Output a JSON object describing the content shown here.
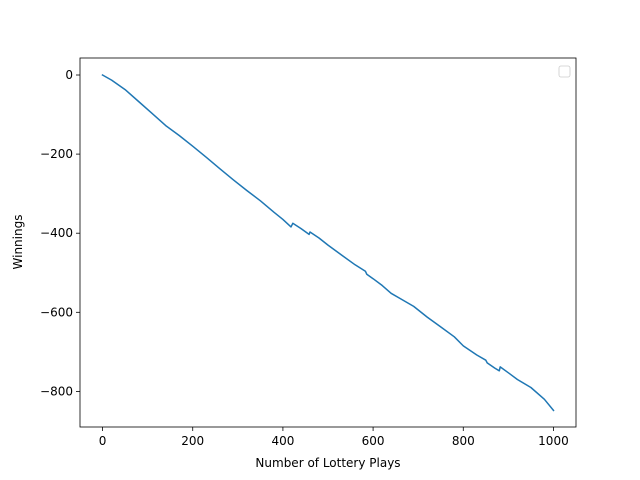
{
  "chart_data": {
    "type": "line",
    "title": "",
    "xlabel": "Number of Lottery Plays",
    "ylabel": "Winnings",
    "xlim": [
      -50,
      1050
    ],
    "ylim": [
      -890,
      43
    ],
    "xticks": [
      0,
      200,
      400,
      600,
      800,
      1000
    ],
    "xtick_labels": [
      "0",
      "200",
      "400",
      "600",
      "800",
      "1000"
    ],
    "yticks": [
      0,
      -200,
      -400,
      -600,
      -800
    ],
    "ytick_labels": [
      "0",
      "−200",
      "−400",
      "−600",
      "−800"
    ],
    "grid": false,
    "legend": {
      "position": "upper-right",
      "entries": []
    },
    "colors": {
      "line": "#1f77b4",
      "axes": "#000000"
    },
    "series": [
      {
        "x": [
          0,
          20,
          50,
          80,
          110,
          140,
          170,
          200,
          230,
          260,
          290,
          320,
          350,
          380,
          400,
          418,
          422,
          440,
          458,
          460,
          480,
          500,
          530,
          560,
          583,
          586,
          600,
          620,
          640,
          660,
          690,
          720,
          750,
          780,
          800,
          830,
          850,
          853,
          870,
          880,
          882,
          900,
          920,
          950,
          980,
          1000
        ],
        "y": [
          0,
          -13,
          -37,
          -67,
          -97,
          -128,
          -153,
          -180,
          -208,
          -237,
          -265,
          -292,
          -318,
          -347,
          -365,
          -384,
          -375,
          -388,
          -403,
          -397,
          -412,
          -430,
          -455,
          -480,
          -496,
          -504,
          -515,
          -532,
          -552,
          -565,
          -585,
          -612,
          -637,
          -662,
          -685,
          -708,
          -721,
          -728,
          -741,
          -748,
          -738,
          -753,
          -770,
          -790,
          -820,
          -848
        ]
      }
    ]
  }
}
